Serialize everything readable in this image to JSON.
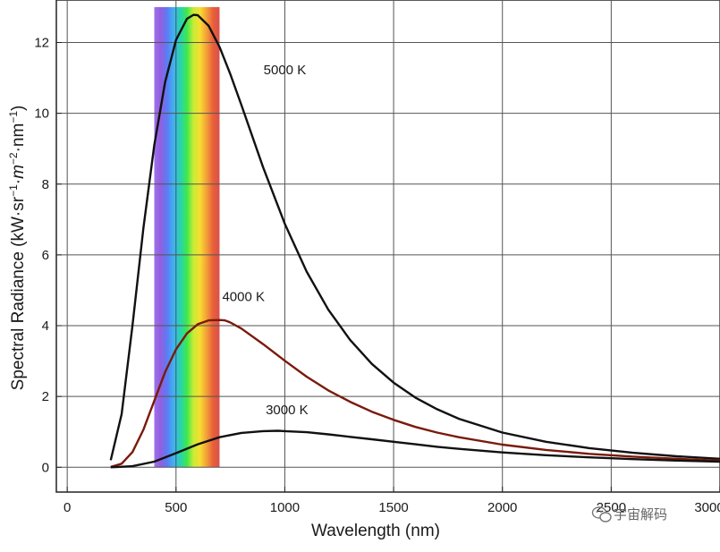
{
  "chart_data": {
    "type": "line",
    "title": "",
    "xlabel": "Wavelength (nm)",
    "ylabel_parts": {
      "main": "Spectral Radiance (kW·sr",
      "sup1": "−1",
      "mid1": "·",
      "m": "m",
      "sup2": "−2",
      "mid2": "·nm",
      "sup3": "−1",
      "close": ")"
    },
    "xlim": [
      -50,
      3000
    ],
    "ylim": [
      -0.7,
      13.2
    ],
    "x_ticks": [
      0,
      500,
      1000,
      1500,
      2000,
      2500,
      3000
    ],
    "x_tick_labels": [
      "0",
      "500",
      "1000",
      "1500",
      "2000",
      "2500",
      "3000"
    ],
    "y_ticks": [
      0,
      2,
      4,
      6,
      8,
      10,
      12
    ],
    "y_tick_labels": [
      "0",
      "2",
      "4",
      "6",
      "8",
      "10",
      "12"
    ],
    "grid": true,
    "legend": "none",
    "visible_spectrum": {
      "from_nm": 400,
      "to_nm": 700,
      "height": 13.0
    },
    "series": [
      {
        "name": "5000 K",
        "color": "#111111",
        "label_at": [
          1000,
          11.1
        ],
        "x": [
          200,
          250,
          300,
          350,
          400,
          450,
          500,
          550,
          580,
          600,
          650,
          700,
          750,
          800,
          900,
          1000,
          1100,
          1200,
          1300,
          1400,
          1500,
          1600,
          1700,
          1800,
          2000,
          2200,
          2400,
          2600,
          2800,
          3000
        ],
        "y": [
          0.2,
          1.5,
          4.0,
          6.75,
          9.1,
          10.88,
          12.07,
          12.67,
          12.78,
          12.77,
          12.47,
          11.87,
          11.1,
          10.24,
          8.48,
          6.88,
          5.53,
          4.45,
          3.6,
          2.92,
          2.39,
          1.97,
          1.64,
          1.37,
          0.98,
          0.72,
          0.54,
          0.41,
          0.31,
          0.24
        ]
      },
      {
        "name": "4000 K",
        "color": "#7a1a0c",
        "label_at": [
          810,
          4.7
        ],
        "x": [
          200,
          250,
          300,
          350,
          400,
          450,
          500,
          550,
          600,
          650,
          700,
          725,
          750,
          800,
          900,
          1000,
          1100,
          1200,
          1300,
          1400,
          1500,
          1600,
          1700,
          1800,
          2000,
          2200,
          2400,
          2600,
          2800,
          3000
        ],
        "y": [
          0.01,
          0.1,
          0.43,
          1.06,
          1.88,
          2.69,
          3.33,
          3.78,
          4.04,
          4.15,
          4.16,
          4.15,
          4.09,
          3.92,
          3.48,
          3.01,
          2.56,
          2.17,
          1.85,
          1.57,
          1.34,
          1.14,
          0.98,
          0.85,
          0.64,
          0.49,
          0.38,
          0.3,
          0.24,
          0.19
        ]
      },
      {
        "name": "3000 K",
        "color": "#111111",
        "label_at": [
          1010,
          1.5
        ],
        "x": [
          200,
          300,
          400,
          500,
          600,
          700,
          800,
          900,
          970,
          1000,
          1100,
          1200,
          1300,
          1400,
          1500,
          1600,
          1700,
          1800,
          2000,
          2200,
          2400,
          2600,
          2800,
          3000
        ],
        "y": [
          0.0,
          0.03,
          0.16,
          0.4,
          0.65,
          0.85,
          0.97,
          1.02,
          1.03,
          1.02,
          0.99,
          0.93,
          0.86,
          0.79,
          0.72,
          0.65,
          0.58,
          0.52,
          0.42,
          0.34,
          0.28,
          0.23,
          0.19,
          0.16
        ]
      }
    ]
  },
  "watermark": {
    "icon": "wechat-icon",
    "text": "宇宙解码"
  }
}
